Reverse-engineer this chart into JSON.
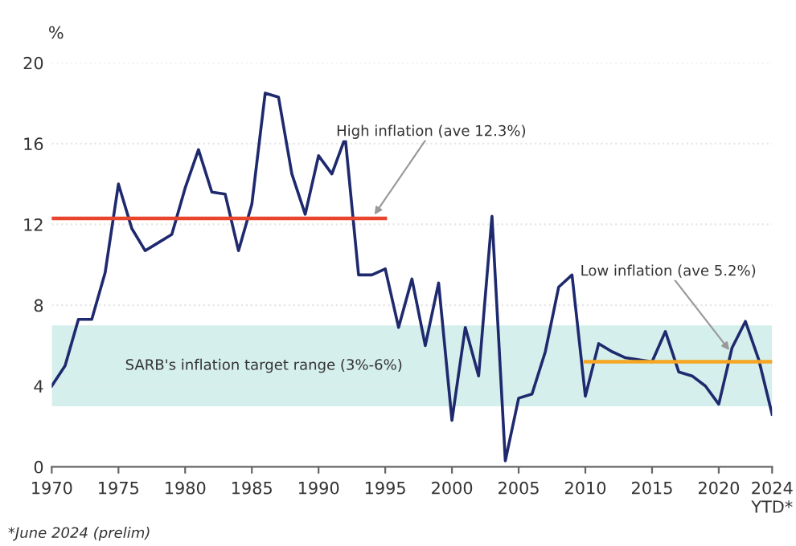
{
  "chart_data": {
    "type": "line",
    "ylabel": "%",
    "x": [
      1970,
      1971,
      1972,
      1973,
      1974,
      1975,
      1976,
      1977,
      1978,
      1979,
      1980,
      1981,
      1982,
      1983,
      1984,
      1985,
      1986,
      1987,
      1988,
      1989,
      1990,
      1991,
      1992,
      1993,
      1994,
      1995,
      1996,
      1997,
      1998,
      1999,
      2000,
      2001,
      2002,
      2003,
      2004,
      2005,
      2006,
      2007,
      2008,
      2009,
      2010,
      2011,
      2012,
      2013,
      2014,
      2015,
      2016,
      2017,
      2018,
      2019,
      2020,
      2021,
      2022,
      2023,
      2024
    ],
    "series": [
      {
        "color": "#1f2a6e",
        "values": [
          4.0,
          5.0,
          7.3,
          7.3,
          9.6,
          14.0,
          11.8,
          10.7,
          11.1,
          11.5,
          13.8,
          15.7,
          13.6,
          13.5,
          10.7,
          13.0,
          18.5,
          18.3,
          14.5,
          12.5,
          15.4,
          14.5,
          16.3,
          9.5,
          9.5,
          9.8,
          6.9,
          9.3,
          6.0,
          9.1,
          2.3,
          6.9,
          4.5,
          12.4,
          0.3,
          3.4,
          3.6,
          5.7,
          8.9,
          9.5,
          3.5,
          6.1,
          5.7,
          5.4,
          5.3,
          5.2,
          6.7,
          4.7,
          4.5,
          4.0,
          3.1,
          5.9,
          7.2,
          5.3,
          2.6
        ]
      },
      {
        "color": "#e8452c",
        "x": [
          1970,
          1995
        ],
        "values": [
          12.3,
          12.3
        ]
      },
      {
        "color": "#f5a623",
        "x": [
          2010,
          2024
        ],
        "values": [
          5.2,
          5.2
        ]
      }
    ],
    "xlim": [
      1970,
      2024
    ],
    "xticks": [
      1970,
      1975,
      1980,
      1985,
      1990,
      1995,
      2000,
      2005,
      2010,
      2015,
      2020,
      {
        "value": 2024,
        "label": "2024\nYTD*"
      }
    ],
    "ylim": [
      0,
      20
    ],
    "yticks": [
      0,
      4,
      8,
      12,
      16,
      20
    ],
    "grid": "y",
    "marker": "none",
    "line_style": "solid",
    "bands": [
      {
        "axis": "y",
        "from": 3,
        "to": 7,
        "label": "SARB's inflation target range (3%-6%)",
        "color": "#d5efec"
      }
    ],
    "annotations": [
      {
        "text": "High inflation (ave 12.3%)",
        "x": 1994,
        "y": 12.3
      },
      {
        "text": "Low inflation (ave 5.2%)",
        "x": 2021,
        "y": 5.6
      },
      "*June 2024 (prelim)"
    ]
  }
}
